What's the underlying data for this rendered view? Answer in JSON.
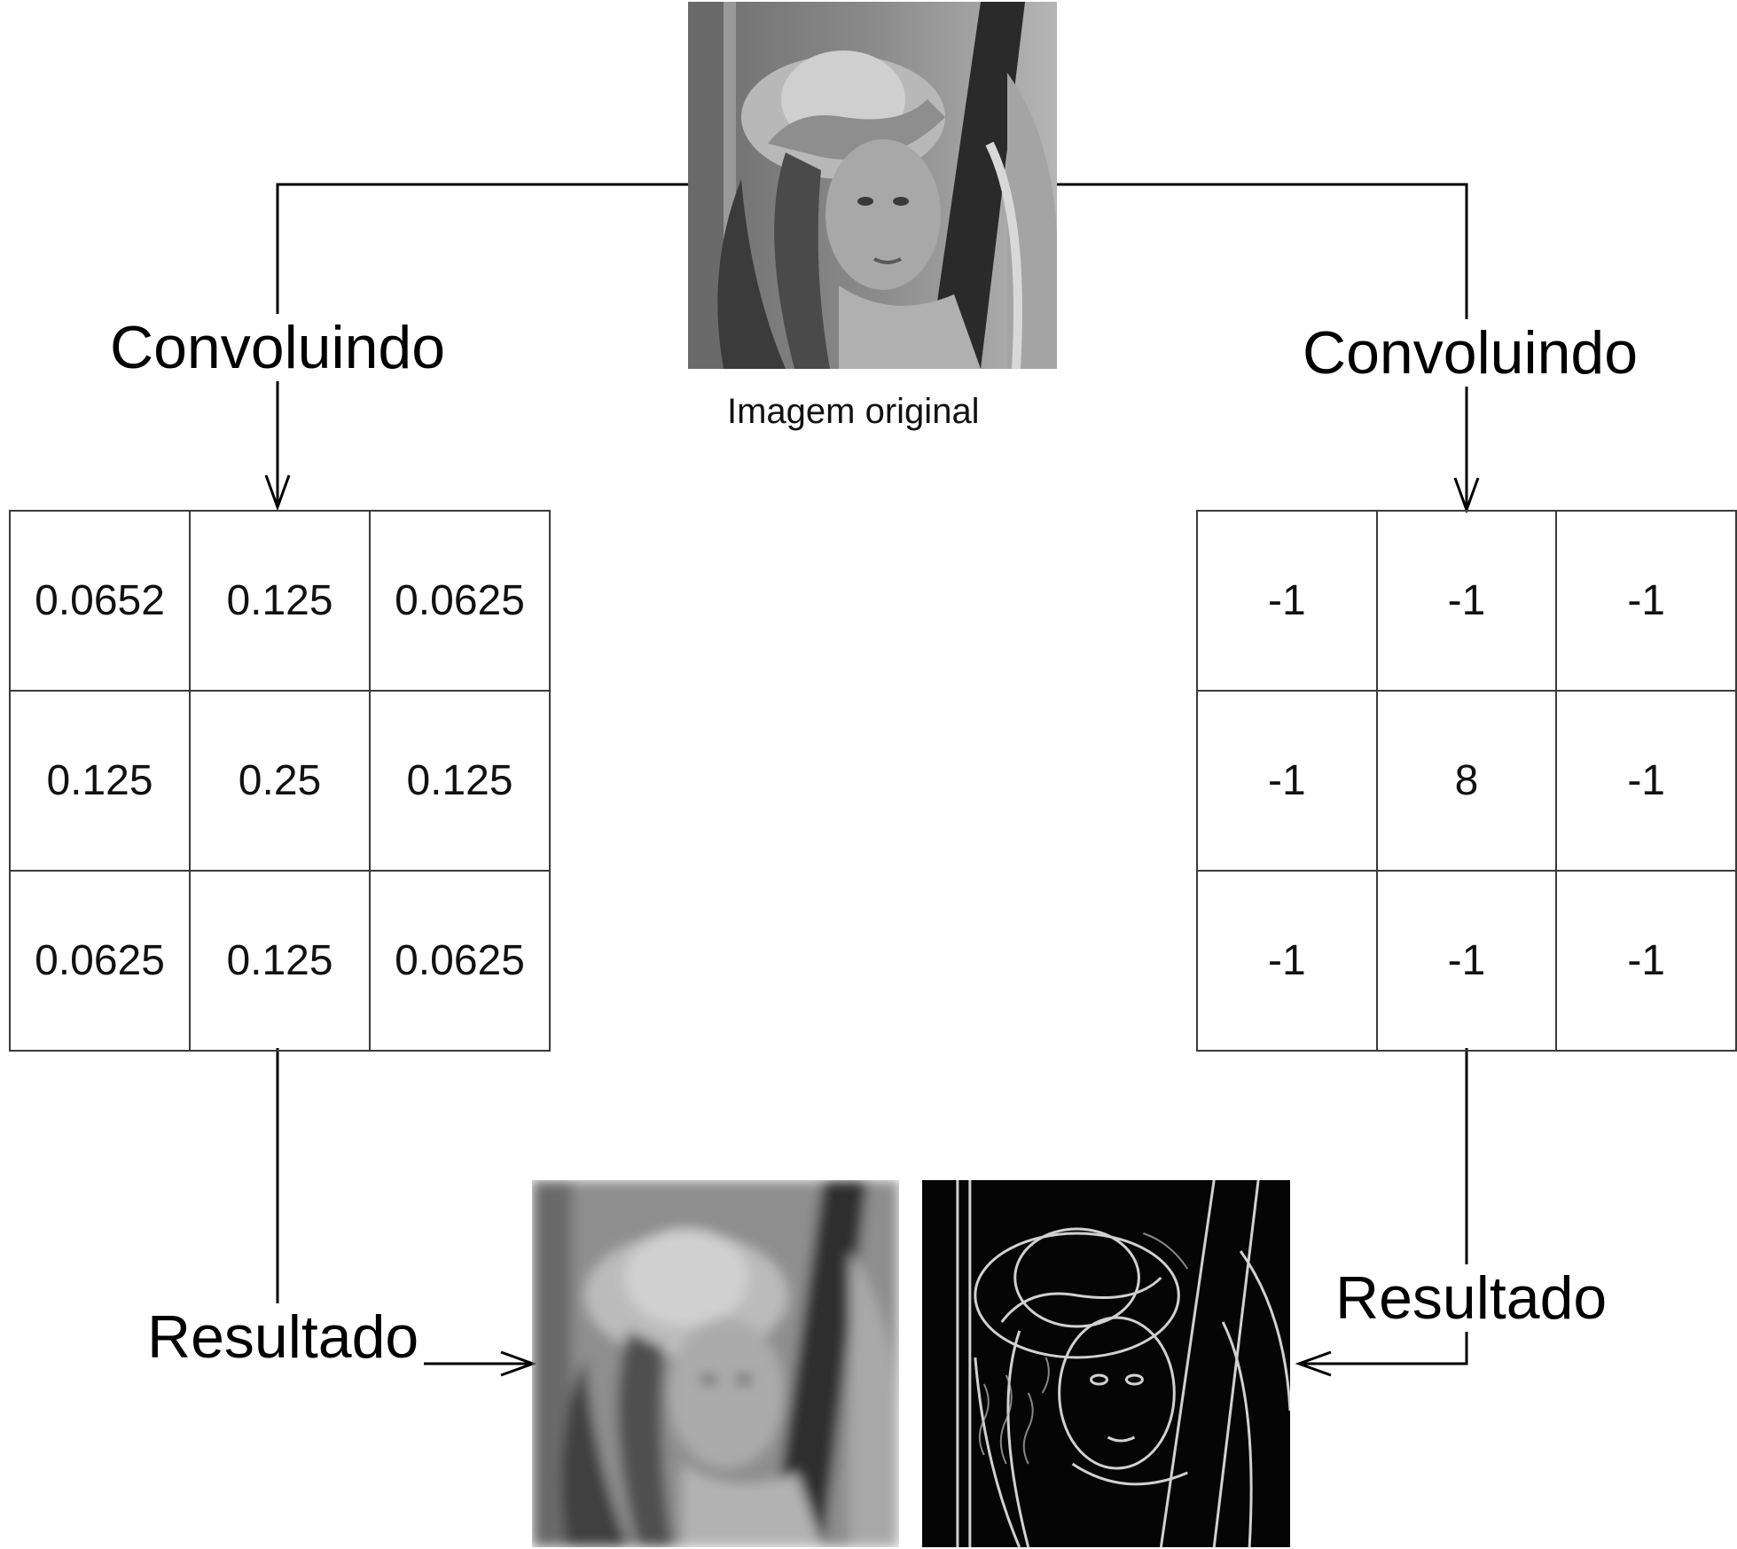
{
  "original_image": {
    "caption": "Imagem original"
  },
  "left_branch": {
    "step_label": "Convoluindo",
    "result_label": "Resultado",
    "kernel": [
      [
        "0.0652",
        "0.125",
        "0.0625"
      ],
      [
        "0.125",
        "0.25",
        "0.125"
      ],
      [
        "0.0625",
        "0.125",
        "0.0625"
      ]
    ]
  },
  "right_branch": {
    "step_label": "Convoluindo",
    "result_label": "Resultado",
    "kernel": [
      [
        "-1",
        "-1",
        "-1"
      ],
      [
        "-1",
        "8",
        "-1"
      ],
      [
        "-1",
        "-1",
        "-1"
      ]
    ]
  }
}
